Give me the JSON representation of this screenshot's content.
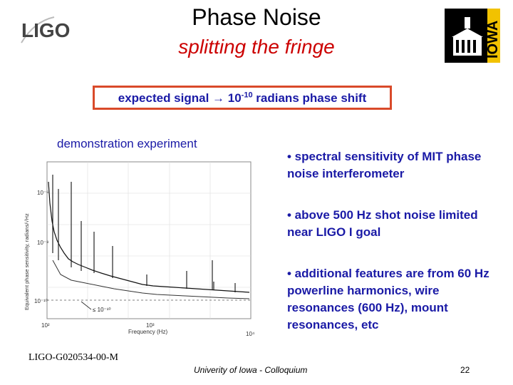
{
  "header": {
    "title": "Phase Noise",
    "subtitle": "splitting the fringe",
    "ligo_logo_text": "LIGO",
    "iowa_logo_text": "IOWA"
  },
  "callout": {
    "prefix": "expected signal ",
    "arrow": "→",
    "base": " 10",
    "exponent": "-10",
    "suffix": " radians phase shift"
  },
  "figure": {
    "caption": "demonstration experiment",
    "ylabel": "Equivalent phase sensitivity, radians/√Hz",
    "xlabel": "Frequency (Hz)",
    "y_ticks": [
      "10⁻⁶",
      "10⁻⁸",
      "10⁻¹⁰"
    ],
    "x_ticks": [
      "10²",
      "10³",
      "10⁴"
    ],
    "annotation": "≤ 10⁻¹⁰"
  },
  "bullets": [
    "• spectral sensitivity of MIT phase noise interferometer",
    "• above 500 Hz shot noise limited near LIGO I goal",
    "• additional features are from 60 Hz powerline  harmonics, wire resonances (600 Hz), mount resonances, etc"
  ],
  "footer": {
    "doc_id": "LIGO-G020534-00-M",
    "center": "Univerity of Iowa - Colloquium",
    "page": "22"
  },
  "colors": {
    "accent_blue": "#1a1aa6",
    "title_red": "#cc0000",
    "box_border": "#d94a2a"
  }
}
